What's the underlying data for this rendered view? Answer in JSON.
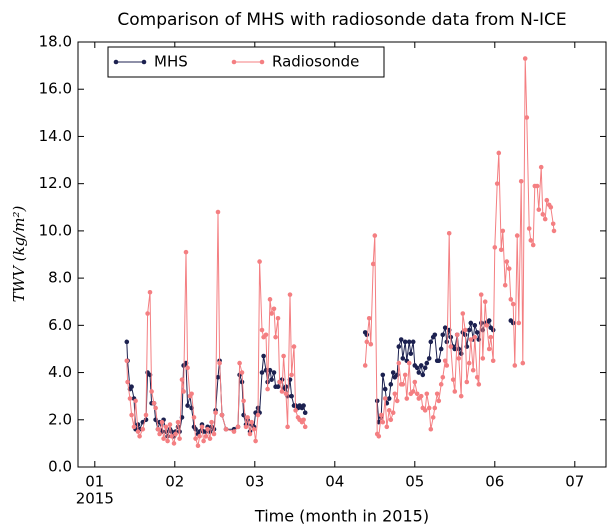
{
  "chart_data": {
    "type": "line",
    "title": "Comparison of MHS with radiosonde data from N-ICE",
    "x_label": "Time (month in 2015)",
    "x_year_label": "2015",
    "y_label": "TWV (kg/m²)",
    "legend": "upper left",
    "grid": false,
    "xlim": [
      0.79,
      7.39
    ],
    "ylim": [
      0,
      18
    ],
    "xticks": [
      {
        "value": 1,
        "label": "01"
      },
      {
        "value": 2,
        "label": "02"
      },
      {
        "value": 3,
        "label": "03"
      },
      {
        "value": 4,
        "label": "04"
      },
      {
        "value": 5,
        "label": "05"
      },
      {
        "value": 6,
        "label": "06"
      },
      {
        "value": 7,
        "label": "07"
      }
    ],
    "yticks": [
      {
        "value": 0,
        "label": "0.0"
      },
      {
        "value": 2,
        "label": "2.0"
      },
      {
        "value": 4,
        "label": "4.0"
      },
      {
        "value": 6,
        "label": "6.0"
      },
      {
        "value": 8,
        "label": "8.0"
      },
      {
        "value": 10,
        "label": "10.0"
      },
      {
        "value": 12,
        "label": "12.0"
      },
      {
        "value": 14,
        "label": "14.0"
      },
      {
        "value": 16,
        "label": "16.0"
      },
      {
        "value": 18,
        "label": "18.0"
      }
    ],
    "x": [
      1.4,
      1.41,
      1.44,
      1.46,
      1.49,
      1.51,
      1.54,
      1.56,
      1.6,
      1.64,
      1.66,
      1.69,
      1.71,
      1.74,
      1.76,
      1.79,
      1.81,
      1.84,
      1.86,
      1.89,
      1.91,
      1.94,
      1.96,
      1.99,
      2.01,
      2.04,
      2.06,
      2.09,
      2.11,
      2.14,
      2.16,
      2.19,
      2.21,
      2.24,
      2.26,
      2.29,
      2.31,
      2.34,
      2.36,
      2.39,
      2.41,
      2.44,
      2.46,
      2.49,
      2.51,
      2.54,
      2.56,
      2.59,
      2.64,
      2.74,
      2.79,
      2.81,
      2.84,
      2.86,
      2.89,
      2.91,
      2.94,
      2.96,
      2.99,
      3.01,
      3.04,
      3.06,
      3.09,
      3.11,
      3.14,
      3.16,
      3.19,
      3.21,
      3.24,
      3.26,
      3.29,
      3.31,
      3.34,
      3.36,
      3.39,
      3.41,
      3.44,
      3.46,
      3.49,
      3.51,
      3.54,
      3.56,
      3.59,
      3.61,
      3.63,
      4.0,
      4.38,
      4.4,
      4.43,
      4.45,
      4.48,
      4.5,
      4.53,
      4.55,
      4.58,
      4.6,
      4.63,
      4.65,
      4.68,
      4.7,
      4.73,
      4.75,
      4.78,
      4.8,
      4.83,
      4.85,
      4.88,
      4.9,
      4.93,
      4.95,
      4.98,
      5.0,
      5.03,
      5.05,
      5.08,
      5.1,
      5.13,
      5.15,
      5.18,
      5.2,
      5.23,
      5.25,
      5.28,
      5.3,
      5.33,
      5.35,
      5.38,
      5.4,
      5.43,
      5.45,
      5.48,
      5.5,
      5.53,
      5.55,
      5.58,
      5.6,
      5.63,
      5.65,
      5.68,
      5.7,
      5.73,
      5.75,
      5.78,
      5.8,
      5.83,
      5.85,
      5.88,
      5.9,
      5.93,
      5.95,
      5.98,
      6.0,
      6.03,
      6.05,
      6.08,
      6.1,
      6.13,
      6.15,
      6.18,
      6.2,
      6.23,
      6.25,
      6.28,
      6.3,
      6.33,
      6.35,
      6.38,
      6.4,
      6.43,
      6.45,
      6.48,
      6.5,
      6.53,
      6.55,
      6.58,
      6.6,
      6.63,
      6.65,
      6.68,
      6.7,
      6.73,
      6.74
    ],
    "series": [
      {
        "name": "MHS",
        "color": "#1c2150",
        "values": [
          5.3,
          4.5,
          3.3,
          3.4,
          2.9,
          1.6,
          1.8,
          1.6,
          1.9,
          2.0,
          4.0,
          3.9,
          2.7,
          2.7,
          2.0,
          1.6,
          1.9,
          1.5,
          2.0,
          1.5,
          1.3,
          1.6,
          1.5,
          1.3,
          1.5,
          1.7,
          1.5,
          2.1,
          4.3,
          4.4,
          2.6,
          3.0,
          2.5,
          1.7,
          1.6,
          1.4,
          1.5,
          1.8,
          1.5,
          1.5,
          1.7,
          1.5,
          1.7,
          1.6,
          2.4,
          3.8,
          4.5,
          2.2,
          1.6,
          1.6,
          1.7,
          3.9,
          3.6,
          2.2,
          1.8,
          2.0,
          1.5,
          1.8,
          1.7,
          2.3,
          2.5,
          2.3,
          4.0,
          4.7,
          4.1,
          3.6,
          4.1,
          3.7,
          4.0,
          3.4,
          3.4,
          3.6,
          3.7,
          3.3,
          3.4,
          3.0,
          3.7,
          3.0,
          2.6,
          2.6,
          2.5,
          2.6,
          2.5,
          2.6,
          2.3,
          null,
          5.7,
          5.6,
          null,
          null,
          null,
          null,
          2.8,
          1.9,
          2.1,
          3.9,
          3.3,
          2.7,
          2.9,
          3.5,
          4.0,
          3.8,
          3.9,
          5.1,
          5.4,
          4.6,
          5.3,
          4.5,
          5.3,
          4.8,
          5.3,
          4.3,
          4.2,
          4.0,
          4.3,
          3.9,
          4.2,
          4.4,
          4.6,
          5.3,
          5.5,
          5.6,
          4.5,
          4.5,
          5.0,
          5.6,
          5.9,
          5.3,
          5.8,
          5.5,
          5.1,
          5.0,
          5.6,
          5.0,
          4.8,
          5.7,
          5.6,
          5.1,
          5.8,
          6.1,
          5.4,
          6.0,
          5.7,
          5.4,
          6.1,
          5.8,
          6.1,
          6.1,
          6.2,
          5.9,
          5.8,
          null,
          null,
          null,
          null,
          null,
          null,
          null,
          null,
          6.2,
          6.1,
          null,
          null,
          null,
          null,
          null,
          null,
          null,
          null,
          null,
          null,
          null,
          null,
          null,
          null,
          null,
          null,
          null,
          null,
          null,
          null,
          null
        ]
      },
      {
        "name": "Radiosonde",
        "color": "#f47f82",
        "values": [
          4.5,
          3.6,
          2.9,
          2.2,
          1.7,
          2.8,
          1.5,
          1.3,
          1.6,
          2.2,
          6.5,
          7.4,
          3.2,
          2.7,
          2.5,
          1.6,
          1.4,
          1.9,
          1.2,
          1.7,
          1.1,
          1.8,
          1.3,
          1.0,
          1.4,
          1.9,
          1.2,
          3.7,
          3.2,
          9.1,
          4.2,
          3.0,
          3.1,
          2.1,
          1.2,
          0.9,
          1.3,
          1.7,
          1.1,
          1.3,
          1.6,
          1.2,
          1.9,
          1.4,
          2.3,
          10.8,
          4.4,
          2.2,
          1.6,
          1.5,
          1.7,
          4.4,
          4.0,
          2.8,
          1.7,
          2.1,
          1.4,
          1.9,
          1.6,
          1.1,
          2.2,
          8.7,
          5.8,
          5.5,
          5.6,
          3.3,
          7.1,
          6.5,
          6.7,
          5.5,
          6.3,
          3.6,
          3.2,
          4.7,
          3.1,
          1.7,
          7.3,
          3.9,
          5.1,
          2.4,
          2.1,
          2.0,
          1.9,
          2.0,
          1.7,
          null,
          4.3,
          5.3,
          6.3,
          5.2,
          8.6,
          9.8,
          1.4,
          1.3,
          2.2,
          1.9,
          2.9,
          1.7,
          2.4,
          2.0,
          2.3,
          3.1,
          2.8,
          4.4,
          3.5,
          3.5,
          3.9,
          2.9,
          4.4,
          3.1,
          3.2,
          3.6,
          3.1,
          2.9,
          3.0,
          2.5,
          2.4,
          3.1,
          2.5,
          1.6,
          2.1,
          2.5,
          3.1,
          2.8,
          3.5,
          3.8,
          4.5,
          4.3,
          9.9,
          5.1,
          3.7,
          3.2,
          5.6,
          4.6,
          3.0,
          6.5,
          5.8,
          3.6,
          4.4,
          5.4,
          4.1,
          5.5,
          3.8,
          3.5,
          7.3,
          4.6,
          7.0,
          6.0,
          5.0,
          5.5,
          4.5,
          9.3,
          12.0,
          13.3,
          9.2,
          10.0,
          7.7,
          8.7,
          8.4,
          7.1,
          6.9,
          4.3,
          9.8,
          6.1,
          12.1,
          4.4,
          17.3,
          14.8,
          10.1,
          9.6,
          9.4,
          11.9,
          11.9,
          10.9,
          12.7,
          10.7,
          10.5,
          11.3,
          11.1,
          11.0,
          10.3,
          10.0
        ]
      }
    ]
  }
}
